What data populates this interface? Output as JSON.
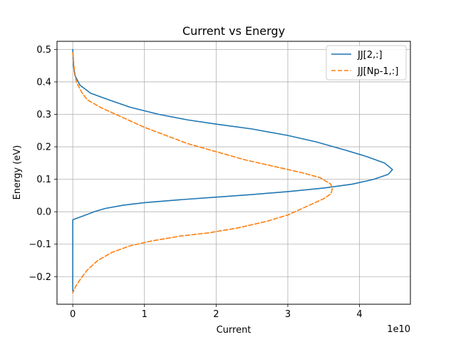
{
  "chart_data": {
    "type": "line",
    "title": "Current vs Energy",
    "xlabel": "Current",
    "ylabel": "Energy (eV)",
    "x_offset_text": "1e10",
    "xlim": [
      -0.22,
      4.71
    ],
    "ylim": [
      -0.285,
      0.525
    ],
    "x_ticks": [
      0,
      1,
      2,
      3,
      4
    ],
    "y_ticks": [
      -0.2,
      -0.1,
      0.0,
      0.1,
      0.2,
      0.3,
      0.4,
      0.5
    ],
    "x_tick_labels": [
      "0",
      "1",
      "2",
      "3",
      "4"
    ],
    "y_tick_labels": [
      "−0.2",
      "−0.1",
      "0.0",
      "0.1",
      "0.2",
      "0.3",
      "0.4",
      "0.5"
    ],
    "grid": true,
    "legend_position": "top-right",
    "series": [
      {
        "name": "JJ[2,:]",
        "color": "#1f77b4",
        "style": "solid",
        "points": [
          [
            0.0,
            0.5
          ],
          [
            0.01,
            0.45
          ],
          [
            0.03,
            0.42
          ],
          [
            0.1,
            0.39
          ],
          [
            0.25,
            0.365
          ],
          [
            0.5,
            0.345
          ],
          [
            0.8,
            0.322
          ],
          [
            1.2,
            0.3
          ],
          [
            1.6,
            0.283
          ],
          [
            2.0,
            0.27
          ],
          [
            2.5,
            0.255
          ],
          [
            3.0,
            0.235
          ],
          [
            3.4,
            0.215
          ],
          [
            3.8,
            0.19
          ],
          [
            4.1,
            0.17
          ],
          [
            4.35,
            0.15
          ],
          [
            4.46,
            0.13
          ],
          [
            4.4,
            0.115
          ],
          [
            4.2,
            0.1
          ],
          [
            3.9,
            0.085
          ],
          [
            3.5,
            0.073
          ],
          [
            3.0,
            0.062
          ],
          [
            2.5,
            0.053
          ],
          [
            2.0,
            0.045
          ],
          [
            1.5,
            0.037
          ],
          [
            1.0,
            0.028
          ],
          [
            0.7,
            0.02
          ],
          [
            0.45,
            0.01
          ],
          [
            0.3,
            0.0
          ],
          [
            0.12,
            -0.015
          ],
          [
            0.02,
            -0.023
          ],
          [
            0.0,
            -0.025
          ],
          [
            0.0,
            -0.1
          ],
          [
            0.0,
            -0.2
          ],
          [
            0.0,
            -0.245
          ]
        ]
      },
      {
        "name": "JJ[Np-1,:]",
        "color": "#ff7f0e",
        "style": "dashed",
        "points": [
          [
            0.0,
            0.49
          ],
          [
            0.02,
            0.44
          ],
          [
            0.05,
            0.4
          ],
          [
            0.12,
            0.37
          ],
          [
            0.2,
            0.345
          ],
          [
            0.4,
            0.32
          ],
          [
            0.7,
            0.29
          ],
          [
            1.0,
            0.26
          ],
          [
            1.3,
            0.235
          ],
          [
            1.6,
            0.21
          ],
          [
            2.0,
            0.185
          ],
          [
            2.4,
            0.16
          ],
          [
            2.8,
            0.14
          ],
          [
            3.2,
            0.12
          ],
          [
            3.45,
            0.105
          ],
          [
            3.6,
            0.085
          ],
          [
            3.62,
            0.07
          ],
          [
            3.6,
            0.055
          ],
          [
            3.5,
            0.04
          ],
          [
            3.3,
            0.02
          ],
          [
            3.0,
            -0.01
          ],
          [
            2.7,
            -0.03
          ],
          [
            2.3,
            -0.05
          ],
          [
            1.9,
            -0.065
          ],
          [
            1.5,
            -0.075
          ],
          [
            1.1,
            -0.09
          ],
          [
            0.8,
            -0.105
          ],
          [
            0.55,
            -0.125
          ],
          [
            0.35,
            -0.15
          ],
          [
            0.2,
            -0.18
          ],
          [
            0.1,
            -0.21
          ],
          [
            0.04,
            -0.23
          ],
          [
            0.0,
            -0.25
          ]
        ]
      }
    ]
  }
}
